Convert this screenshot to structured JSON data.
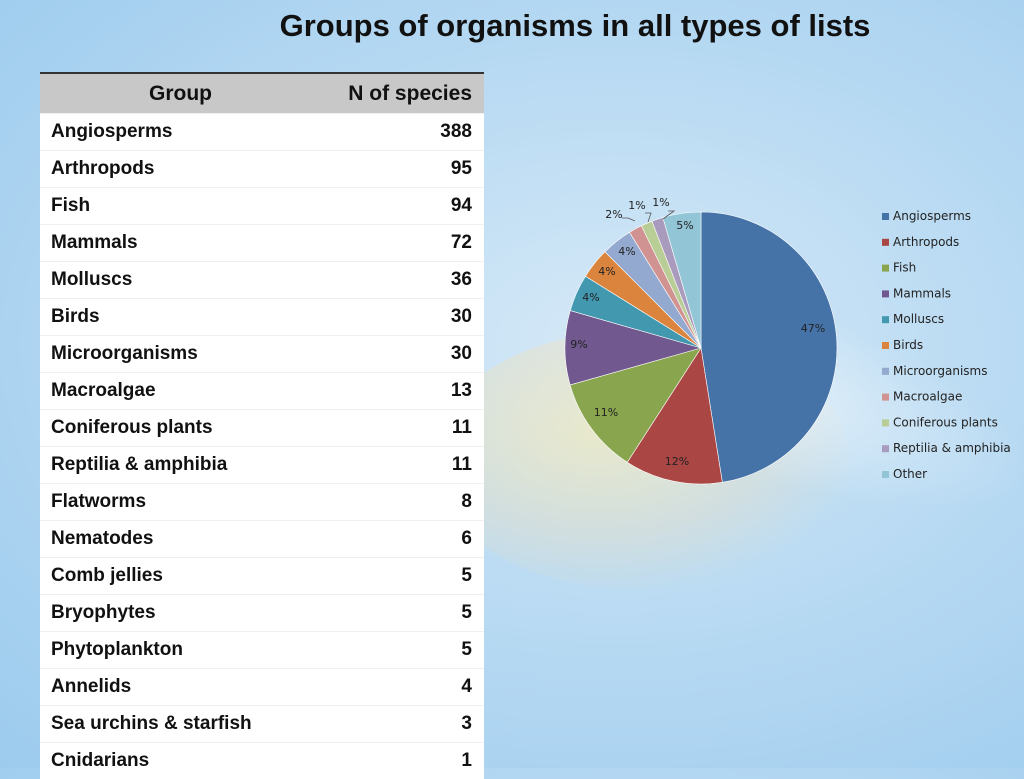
{
  "title": "Groups of organisms in all types of lists",
  "table": {
    "headers": [
      "Group",
      "N of species"
    ],
    "rows": [
      {
        "group": "Angiosperms",
        "n": "388"
      },
      {
        "group": "Arthropods",
        "n": "95"
      },
      {
        "group": "Fish",
        "n": "94"
      },
      {
        "group": "Mammals",
        "n": "72"
      },
      {
        "group": "Molluscs",
        "n": "36"
      },
      {
        "group": "Birds",
        "n": "30"
      },
      {
        "group": "Microorganisms",
        "n": "30"
      },
      {
        "group": "Macroalgae",
        "n": "13"
      },
      {
        "group": "Coniferous plants",
        "n": "11"
      },
      {
        "group": "Reptilia & amphibia",
        "n": "11"
      },
      {
        "group": "Flatworms",
        "n": "8"
      },
      {
        "group": "Nematodes",
        "n": "6"
      },
      {
        "group": "Comb jellies",
        "n": "5"
      },
      {
        "group": "Bryophytes",
        "n": "5"
      },
      {
        "group": "Phytoplankton",
        "n": "5"
      },
      {
        "group": "Annelids",
        "n": "4"
      },
      {
        "group": "Sea urchins & starfish",
        "n": "3"
      },
      {
        "group": "Cnidarians",
        "n": "1"
      }
    ]
  },
  "chart_data": {
    "type": "pie",
    "categories": [
      "Angiosperms",
      "Arthropods",
      "Fish",
      "Mammals",
      "Molluscs",
      "Birds",
      "Microorganisms",
      "Macroalgae",
      "Coniferous plants",
      "Reptilia & amphibia",
      "Other"
    ],
    "values": [
      388,
      95,
      94,
      72,
      36,
      30,
      30,
      13,
      11,
      11,
      37
    ],
    "labels": [
      "47%",
      "12%",
      "11%",
      "9%",
      "4%",
      "4%",
      "4%",
      "2%",
      "1%",
      "1%",
      "5%"
    ],
    "colors": [
      "#4572a7",
      "#aa4643",
      "#89a54e",
      "#71588f",
      "#4198af",
      "#db843d",
      "#93a9cf",
      "#d19392",
      "#b9cd96",
      "#a99bbd",
      "#92c5d5"
    ],
    "legend_position": "right"
  }
}
